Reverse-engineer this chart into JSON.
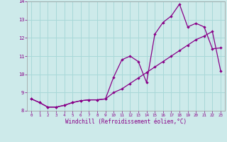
{
  "xlabel": "Windchill (Refroidissement éolien,°C)",
  "background_color": "#cdeaea",
  "grid_color": "#a8d8d8",
  "line_color": "#880088",
  "x_vals": [
    0,
    1,
    2,
    3,
    4,
    5,
    6,
    7,
    8,
    9,
    10,
    11,
    12,
    13,
    14,
    15,
    16,
    17,
    18,
    19,
    20,
    21,
    22,
    23
  ],
  "y_line1": [
    8.65,
    8.45,
    8.2,
    8.2,
    8.3,
    8.45,
    8.55,
    8.6,
    8.6,
    8.65,
    9.85,
    10.8,
    11.0,
    10.7,
    9.55,
    12.2,
    12.85,
    13.2,
    13.85,
    12.6,
    12.8,
    12.6,
    11.4,
    11.45
  ],
  "y_line2": [
    8.65,
    8.45,
    8.2,
    8.2,
    8.3,
    8.45,
    8.55,
    8.6,
    8.6,
    8.65,
    9.0,
    9.2,
    9.5,
    9.8,
    10.1,
    10.4,
    10.7,
    11.0,
    11.3,
    11.6,
    11.9,
    12.1,
    12.35,
    10.2
  ],
  "ylim": [
    8.0,
    14.0
  ],
  "xlim": [
    -0.5,
    23.5
  ],
  "yticks": [
    8,
    9,
    10,
    11,
    12,
    13,
    14
  ],
  "xticks": [
    0,
    1,
    2,
    3,
    4,
    5,
    6,
    7,
    8,
    9,
    10,
    11,
    12,
    13,
    14,
    15,
    16,
    17,
    18,
    19,
    20,
    21,
    22,
    23
  ]
}
